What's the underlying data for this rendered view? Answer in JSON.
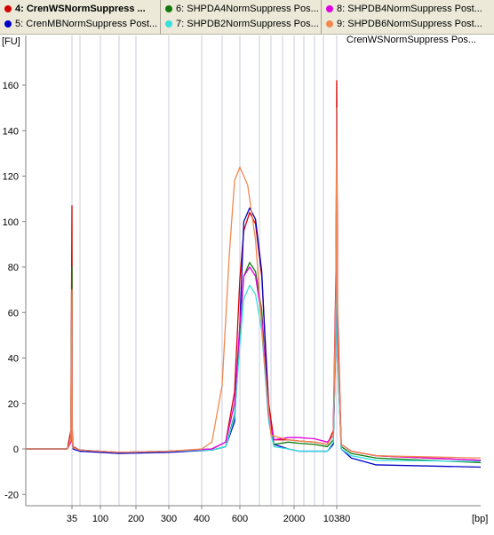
{
  "legend": {
    "items": [
      {
        "number": "4:",
        "label": "CrenWSNormSuppress ...",
        "color": "#d40000",
        "selected": true
      },
      {
        "number": "5:",
        "label": "CrenMBNormSuppress Post...",
        "color": "#0000c8",
        "selected": false
      },
      {
        "number": "6:",
        "label": "SHPDA4NormSuppress Pos...",
        "color": "#107a10",
        "selected": false
      },
      {
        "number": "7:",
        "label": "SHPDB2NormSuppress Pos...",
        "color": "#38e0e0",
        "selected": false
      },
      {
        "number": "8:",
        "label": "SHPDB4NormSuppress Post...",
        "color": "#e000e0",
        "selected": false
      },
      {
        "number": "9:",
        "label": "SHPDB6NormSuppress Post...",
        "color": "#f08850",
        "selected": false
      }
    ]
  },
  "sample_label": "CrenWSNormSuppress Pos...",
  "chart_data": {
    "type": "line",
    "ylabel": "[FU]",
    "xlabel": "[bp]",
    "ylim": [
      -23,
      172
    ],
    "yticks": [
      -20,
      0,
      20,
      40,
      60,
      80,
      100,
      120,
      140,
      160
    ],
    "grid": "vertical ladder lines",
    "x_ticks": [
      "35",
      "100",
      "200",
      "300",
      "400",
      "600",
      "2000",
      "10380"
    ],
    "series": [
      {
        "name": "4",
        "color": "#d40000",
        "peak_bp": 650,
        "values": [
          [
            15,
            0
          ],
          [
            33,
            0
          ],
          [
            34.5,
            8
          ],
          [
            35,
            107
          ],
          [
            35.5,
            10
          ],
          [
            37,
            1
          ],
          [
            50,
            -0.5
          ],
          [
            150,
            -1.5
          ],
          [
            300,
            -1
          ],
          [
            450,
            0
          ],
          [
            520,
            3
          ],
          [
            570,
            25
          ],
          [
            600,
            75
          ],
          [
            620,
            96
          ],
          [
            650,
            104
          ],
          [
            680,
            99
          ],
          [
            720,
            76
          ],
          [
            780,
            20
          ],
          [
            850,
            4
          ],
          [
            1500,
            4
          ],
          [
            2500,
            3.5
          ],
          [
            5000,
            3
          ],
          [
            8000,
            2
          ],
          [
            9500,
            8
          ],
          [
            10200,
            80
          ],
          [
            10380,
            162
          ],
          [
            10600,
            60
          ],
          [
            11500,
            2
          ],
          [
            14000,
            -1
          ],
          [
            20000,
            -3
          ],
          [
            50000,
            -5
          ]
        ]
      },
      {
        "name": "5",
        "color": "#0000c8",
        "peak_bp": 650,
        "values": [
          [
            15,
            0
          ],
          [
            33,
            0
          ],
          [
            34.5,
            3
          ],
          [
            35,
            36
          ],
          [
            35.5,
            4
          ],
          [
            37,
            0
          ],
          [
            50,
            -1
          ],
          [
            150,
            -2
          ],
          [
            300,
            -1.5
          ],
          [
            450,
            -0.5
          ],
          [
            520,
            1
          ],
          [
            570,
            12
          ],
          [
            600,
            55
          ],
          [
            620,
            100
          ],
          [
            650,
            106
          ],
          [
            680,
            101
          ],
          [
            720,
            78
          ],
          [
            780,
            15
          ],
          [
            850,
            2
          ],
          [
            1500,
            0
          ],
          [
            2500,
            -1
          ],
          [
            5000,
            -1
          ],
          [
            8000,
            -1
          ],
          [
            9500,
            2
          ],
          [
            10200,
            50
          ],
          [
            10380,
            150
          ],
          [
            10600,
            40
          ],
          [
            11500,
            0
          ],
          [
            14000,
            -4
          ],
          [
            20000,
            -7
          ],
          [
            50000,
            -8
          ]
        ]
      },
      {
        "name": "6",
        "color": "#107a10",
        "peak_bp": 640,
        "values": [
          [
            15,
            0
          ],
          [
            33,
            0
          ],
          [
            34.5,
            3
          ],
          [
            35,
            80
          ],
          [
            35.5,
            5
          ],
          [
            37,
            0.5
          ],
          [
            50,
            -0.5
          ],
          [
            150,
            -1.5
          ],
          [
            300,
            -1
          ],
          [
            450,
            -0.5
          ],
          [
            520,
            1
          ],
          [
            570,
            15
          ],
          [
            600,
            52
          ],
          [
            620,
            76
          ],
          [
            650,
            82
          ],
          [
            680,
            78
          ],
          [
            720,
            61
          ],
          [
            780,
            14
          ],
          [
            850,
            2
          ],
          [
            1500,
            3
          ],
          [
            2500,
            2.5
          ],
          [
            5000,
            2
          ],
          [
            8000,
            1
          ],
          [
            9500,
            4
          ],
          [
            10200,
            60
          ],
          [
            10380,
            140
          ],
          [
            10600,
            45
          ],
          [
            11500,
            1
          ],
          [
            14000,
            -2
          ],
          [
            20000,
            -4
          ],
          [
            50000,
            -6
          ]
        ]
      },
      {
        "name": "7",
        "color": "#38e0e0",
        "peak_bp": 640,
        "values": [
          [
            15,
            0
          ],
          [
            33,
            0
          ],
          [
            34.5,
            3
          ],
          [
            35,
            55
          ],
          [
            35.5,
            4
          ],
          [
            37,
            0.5
          ],
          [
            50,
            -0.5
          ],
          [
            150,
            -1.5
          ],
          [
            300,
            -1
          ],
          [
            450,
            -0.5
          ],
          [
            520,
            1
          ],
          [
            570,
            14
          ],
          [
            600,
            46
          ],
          [
            620,
            66
          ],
          [
            650,
            72
          ],
          [
            680,
            68
          ],
          [
            720,
            52
          ],
          [
            780,
            12
          ],
          [
            850,
            1
          ],
          [
            1500,
            0
          ],
          [
            2500,
            -1
          ],
          [
            5000,
            -1
          ],
          [
            8000,
            -1
          ],
          [
            9500,
            3
          ],
          [
            10200,
            50
          ],
          [
            10380,
            122
          ],
          [
            10600,
            38
          ],
          [
            11500,
            0
          ],
          [
            14000,
            -3
          ],
          [
            20000,
            -5
          ],
          [
            50000,
            -5.5
          ]
        ]
      },
      {
        "name": "8",
        "color": "#e000e0",
        "peak_bp": 640,
        "values": [
          [
            15,
            0
          ],
          [
            33,
            0
          ],
          [
            34.5,
            3
          ],
          [
            35,
            60
          ],
          [
            35.5,
            5
          ],
          [
            37,
            0.5
          ],
          [
            50,
            -0.5
          ],
          [
            150,
            -1.5
          ],
          [
            300,
            -1
          ],
          [
            450,
            0
          ],
          [
            520,
            3
          ],
          [
            570,
            20
          ],
          [
            600,
            55
          ],
          [
            620,
            76
          ],
          [
            650,
            80
          ],
          [
            680,
            76
          ],
          [
            720,
            58
          ],
          [
            780,
            15
          ],
          [
            850,
            4
          ],
          [
            1500,
            5
          ],
          [
            2500,
            5
          ],
          [
            5000,
            4.5
          ],
          [
            8000,
            3
          ],
          [
            9500,
            6
          ],
          [
            10200,
            70
          ],
          [
            10380,
            148
          ],
          [
            10600,
            50
          ],
          [
            11500,
            2
          ],
          [
            14000,
            -1
          ],
          [
            20000,
            -3
          ],
          [
            50000,
            -5
          ]
        ]
      },
      {
        "name": "9",
        "color": "#f08850",
        "peak_bp": 600,
        "values": [
          [
            15,
            0
          ],
          [
            33,
            0
          ],
          [
            34.5,
            4
          ],
          [
            35,
            70
          ],
          [
            35.5,
            5
          ],
          [
            37,
            0.5
          ],
          [
            50,
            -0.5
          ],
          [
            150,
            -1.5
          ],
          [
            300,
            -1
          ],
          [
            400,
            0
          ],
          [
            450,
            3
          ],
          [
            500,
            28
          ],
          [
            540,
            85
          ],
          [
            570,
            118
          ],
          [
            600,
            124
          ],
          [
            640,
            116
          ],
          [
            680,
            92
          ],
          [
            740,
            40
          ],
          [
            800,
            6
          ],
          [
            1500,
            4
          ],
          [
            2500,
            3.5
          ],
          [
            5000,
            3
          ],
          [
            8000,
            2
          ],
          [
            9500,
            6
          ],
          [
            10200,
            70
          ],
          [
            10380,
            150
          ],
          [
            10600,
            50
          ],
          [
            11500,
            2
          ],
          [
            14000,
            -1
          ],
          [
            20000,
            -3
          ],
          [
            50000,
            -4
          ]
        ]
      }
    ]
  }
}
